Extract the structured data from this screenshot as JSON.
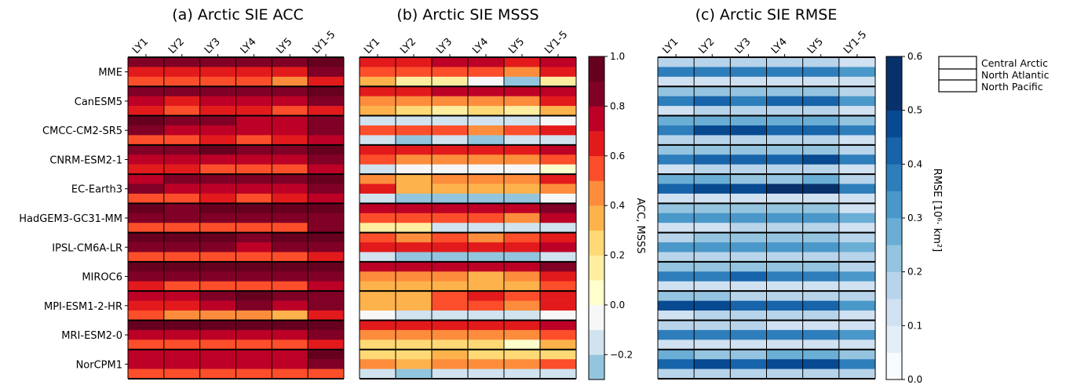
{
  "chart_data": [
    {
      "type": "heatmap",
      "title": "(a) Arctic SIE ACC",
      "x_labels": [
        "LY1",
        "LY2",
        "LY3",
        "LY4",
        "LY5",
        "LY1-5"
      ],
      "y_labels": [
        "MME",
        "CanESM5",
        "CMCC-CM2-SR5",
        "CNRM-ESM2-1",
        "EC-Earth3",
        "HadGEM3-GC31-MM",
        "IPSL-CM6A-LR",
        "MIROC6",
        "MPI-ESM1-2-HR",
        "MRI-ESM2-0",
        "NorCPM1"
      ],
      "sub_rows": [
        "Central Arctic",
        "North Atlantic",
        "North Pacific"
      ],
      "values": [
        [
          [
            0.86,
            0.85,
            0.86,
            0.83,
            0.82,
            0.91
          ],
          [
            0.66,
            0.66,
            0.67,
            0.66,
            0.66,
            0.86
          ],
          [
            0.57,
            0.57,
            0.55,
            0.57,
            0.48,
            0.66
          ]
        ],
        [
          [
            0.84,
            0.84,
            0.87,
            0.87,
            0.86,
            0.9
          ],
          [
            0.71,
            0.68,
            0.72,
            0.7,
            0.73,
            0.84
          ],
          [
            0.67,
            0.56,
            0.6,
            0.61,
            0.59,
            0.68
          ]
        ],
        [
          [
            0.93,
            0.83,
            0.84,
            0.75,
            0.73,
            0.87
          ],
          [
            0.8,
            0.78,
            0.78,
            0.75,
            0.72,
            0.83
          ],
          [
            0.52,
            0.55,
            0.62,
            0.56,
            0.61,
            0.77
          ]
        ],
        [
          [
            0.83,
            0.85,
            0.91,
            0.85,
            0.86,
            0.93
          ],
          [
            0.78,
            0.72,
            0.76,
            0.74,
            0.78,
            0.8
          ],
          [
            0.65,
            0.63,
            0.58,
            0.57,
            0.51,
            0.74
          ]
        ],
        [
          [
            0.76,
            0.83,
            0.8,
            0.81,
            0.8,
            0.95
          ],
          [
            0.81,
            0.72,
            0.73,
            0.73,
            0.72,
            0.82
          ],
          [
            0.5,
            0.5,
            0.6,
            0.5,
            0.6,
            0.76
          ]
        ],
        [
          [
            0.93,
            0.88,
            0.91,
            0.92,
            0.9,
            0.95
          ],
          [
            0.85,
            0.86,
            0.87,
            0.88,
            0.87,
            0.88
          ],
          [
            0.58,
            0.58,
            0.52,
            0.52,
            0.52,
            0.82
          ]
        ],
        [
          [
            0.91,
            0.95,
            0.95,
            0.89,
            0.91,
            0.93
          ],
          [
            0.8,
            0.84,
            0.82,
            0.79,
            0.8,
            0.87
          ],
          [
            0.52,
            0.51,
            0.52,
            0.5,
            0.51,
            0.62
          ]
        ],
        [
          [
            0.94,
            0.91,
            0.91,
            0.91,
            0.92,
            0.96
          ],
          [
            0.82,
            0.82,
            0.84,
            0.84,
            0.82,
            0.84
          ],
          [
            0.62,
            0.54,
            0.52,
            0.57,
            0.53,
            0.76
          ]
        ],
        [
          [
            0.72,
            0.73,
            0.82,
            0.9,
            0.89,
            0.88
          ],
          [
            0.65,
            0.63,
            0.78,
            0.81,
            0.76,
            0.86
          ],
          [
            0.54,
            0.45,
            0.44,
            0.42,
            0.38,
            0.65
          ]
        ],
        [
          [
            0.91,
            0.92,
            0.92,
            0.94,
            0.94,
            0.96
          ],
          [
            0.77,
            0.76,
            0.75,
            0.76,
            0.74,
            0.84
          ],
          [
            0.57,
            0.58,
            0.58,
            0.58,
            0.56,
            0.62
          ]
        ],
        [
          [
            0.76,
            0.76,
            0.73,
            0.75,
            0.76,
            0.92
          ],
          [
            0.73,
            0.72,
            0.75,
            0.74,
            0.73,
            0.87
          ],
          [
            0.52,
            0.52,
            0.52,
            0.52,
            0.51,
            0.58
          ]
        ]
      ],
      "colorbar": {
        "label": "ACC, MSSS",
        "ticks": [
          "1.0",
          "0.8",
          "0.6",
          "0.4",
          "0.2",
          "0.0",
          "−0.2"
        ],
        "range": [
          -0.3,
          1.0
        ]
      }
    },
    {
      "type": "heatmap",
      "title": "(b) Arctic SIE MSSS",
      "x_labels": [
        "LY1",
        "LY2",
        "LY3",
        "LY4",
        "LY5",
        "LY1-5"
      ],
      "y_labels": [
        "MME",
        "CanESM5",
        "CMCC-CM2-SR5",
        "CNRM-ESM2-1",
        "EC-Earth3",
        "HadGEM3-GC31-MM",
        "IPSL-CM6A-LR",
        "MIROC6",
        "MPI-ESM1-2-HR",
        "MRI-ESM2-0",
        "NorCPM1"
      ],
      "sub_rows": [
        "Central Arctic",
        "North Atlantic",
        "North Pacific"
      ],
      "values": [
        [
          [
            0.64,
            0.66,
            0.7,
            0.72,
            0.66,
            0.78
          ],
          [
            0.52,
            0.52,
            0.55,
            0.51,
            0.48,
            0.62
          ],
          [
            0.3,
            0.18,
            0.15,
            -0.05,
            -0.22,
            0.18
          ]
        ],
        [
          [
            0.62,
            0.64,
            0.73,
            0.73,
            0.71,
            0.78
          ],
          [
            0.47,
            0.44,
            0.48,
            0.49,
            0.46,
            0.63
          ],
          [
            0.34,
            0.21,
            0.17,
            0.22,
            0.19,
            0.3
          ]
        ],
        [
          [
            -0.18,
            -0.2,
            -0.17,
            -0.12,
            -0.2,
            -0.1
          ],
          [
            0.58,
            0.52,
            0.52,
            0.48,
            0.5,
            0.62
          ],
          [
            -0.2,
            -0.24,
            -0.18,
            -0.22,
            -0.18,
            -0.2
          ]
        ],
        [
          [
            0.62,
            0.62,
            0.65,
            0.62,
            0.64,
            0.72
          ],
          [
            0.51,
            0.46,
            0.48,
            0.42,
            0.48,
            0.55
          ],
          [
            -0.12,
            -0.02,
            -0.05,
            -0.1,
            -0.05,
            0.0
          ]
        ],
        [
          [
            0.42,
            0.35,
            0.42,
            0.45,
            0.41,
            0.62
          ],
          [
            0.6,
            0.32,
            0.36,
            0.31,
            0.34,
            0.46
          ],
          [
            -0.2,
            -0.22,
            -0.22,
            -0.21,
            -0.22,
            -0.03
          ]
        ],
        [
          [
            0.78,
            0.72,
            0.74,
            0.78,
            0.76,
            0.88
          ],
          [
            0.58,
            0.54,
            0.55,
            0.52,
            0.46,
            0.72
          ],
          [
            0.15,
            0.15,
            -0.2,
            -0.2,
            -0.2,
            -0.2
          ]
        ],
        [
          [
            0.57,
            0.46,
            0.56,
            0.47,
            0.5,
            0.62
          ],
          [
            0.6,
            0.62,
            0.68,
            0.62,
            0.62,
            0.72
          ],
          [
            -0.2,
            -0.23,
            -0.22,
            -0.21,
            -0.22,
            -0.15
          ]
        ],
        [
          [
            0.7,
            0.74,
            0.77,
            0.74,
            0.73,
            0.85
          ],
          [
            0.48,
            0.48,
            0.42,
            0.38,
            0.46,
            0.64
          ],
          [
            0.31,
            0.33,
            0.35,
            0.32,
            0.32,
            0.52
          ]
        ],
        [
          [
            0.34,
            0.3,
            0.52,
            0.62,
            0.54,
            0.66
          ],
          [
            0.32,
            0.3,
            0.56,
            0.52,
            0.44,
            0.64
          ],
          [
            -0.05,
            -0.15,
            -0.18,
            -0.2,
            -0.2,
            -0.05
          ]
        ],
        [
          [
            0.62,
            0.6,
            0.62,
            0.66,
            0.64,
            0.76
          ],
          [
            0.48,
            0.46,
            0.42,
            0.4,
            0.41,
            0.52
          ],
          [
            0.28,
            0.24,
            0.22,
            0.22,
            0.0,
            0.32
          ]
        ],
        [
          [
            0.22,
            0.26,
            0.32,
            0.28,
            0.26,
            0.2
          ],
          [
            0.44,
            0.38,
            0.42,
            0.41,
            0.4,
            0.56
          ],
          [
            -0.2,
            -0.22,
            -0.2,
            -0.2,
            -0.2,
            -0.16
          ]
        ]
      ]
    },
    {
      "type": "heatmap",
      "title": "(c) Arctic SIE RMSE",
      "x_labels": [
        "LY1",
        "LY2",
        "LY3",
        "LY4",
        "LY5",
        "LY1-5"
      ],
      "y_labels": [
        "MME",
        "CanESM5",
        "CMCC-CM2-SR5",
        "CNRM-ESM2-1",
        "EC-Earth3",
        "HadGEM3-GC31-MM",
        "IPSL-CM6A-LR",
        "MIROC6",
        "MPI-ESM1-2-HR",
        "MRI-ESM2-0",
        "NorCPM1"
      ],
      "sub_rows": [
        "Central Arctic",
        "North Atlantic",
        "North Pacific"
      ],
      "values": [
        [
          [
            0.15,
            0.16,
            0.15,
            0.16,
            0.17,
            0.12
          ],
          [
            0.37,
            0.38,
            0.37,
            0.38,
            0.39,
            0.3
          ],
          [
            0.12,
            0.13,
            0.13,
            0.14,
            0.14,
            0.11
          ]
        ],
        [
          [
            0.22,
            0.23,
            0.2,
            0.21,
            0.21,
            0.17
          ],
          [
            0.39,
            0.4,
            0.39,
            0.41,
            0.4,
            0.33
          ],
          [
            0.13,
            0.15,
            0.15,
            0.15,
            0.15,
            0.12
          ]
        ],
        [
          [
            0.25,
            0.27,
            0.27,
            0.27,
            0.26,
            0.22
          ],
          [
            0.38,
            0.47,
            0.45,
            0.42,
            0.44,
            0.35
          ],
          [
            0.16,
            0.19,
            0.19,
            0.19,
            0.18,
            0.14
          ]
        ],
        [
          [
            0.2,
            0.21,
            0.22,
            0.22,
            0.22,
            0.16
          ],
          [
            0.38,
            0.42,
            0.44,
            0.43,
            0.48,
            0.36
          ],
          [
            0.14,
            0.15,
            0.15,
            0.15,
            0.15,
            0.12
          ]
        ],
        [
          [
            0.25,
            0.27,
            0.24,
            0.24,
            0.26,
            0.18
          ],
          [
            0.4,
            0.47,
            0.47,
            0.52,
            0.5,
            0.39
          ],
          [
            0.13,
            0.14,
            0.14,
            0.14,
            0.14,
            0.12
          ]
        ],
        [
          [
            0.2,
            0.21,
            0.22,
            0.21,
            0.21,
            0.14
          ],
          [
            0.3,
            0.31,
            0.32,
            0.33,
            0.34,
            0.25
          ],
          [
            0.13,
            0.13,
            0.15,
            0.15,
            0.15,
            0.12
          ]
        ],
        [
          [
            0.18,
            0.2,
            0.2,
            0.2,
            0.2,
            0.16
          ],
          [
            0.33,
            0.34,
            0.34,
            0.34,
            0.34,
            0.28
          ],
          [
            0.16,
            0.16,
            0.16,
            0.16,
            0.16,
            0.15
          ]
        ],
        [
          [
            0.2,
            0.2,
            0.2,
            0.2,
            0.2,
            0.15
          ],
          [
            0.37,
            0.38,
            0.4,
            0.39,
            0.38,
            0.3
          ],
          [
            0.12,
            0.13,
            0.13,
            0.13,
            0.13,
            0.11
          ]
        ],
        [
          [
            0.22,
            0.24,
            0.19,
            0.16,
            0.17,
            0.16
          ],
          [
            0.45,
            0.47,
            0.44,
            0.42,
            0.44,
            0.34
          ],
          [
            0.14,
            0.16,
            0.16,
            0.16,
            0.16,
            0.12
          ]
        ],
        [
          [
            0.15,
            0.15,
            0.15,
            0.14,
            0.14,
            0.12
          ],
          [
            0.36,
            0.37,
            0.37,
            0.38,
            0.38,
            0.32
          ],
          [
            0.12,
            0.13,
            0.13,
            0.14,
            0.14,
            0.11
          ]
        ],
        [
          [
            0.25,
            0.24,
            0.24,
            0.25,
            0.25,
            0.2
          ],
          [
            0.44,
            0.45,
            0.44,
            0.45,
            0.45,
            0.35
          ],
          [
            0.17,
            0.17,
            0.18,
            0.18,
            0.18,
            0.16
          ]
        ]
      ],
      "colorbar": {
        "label": "RMSE [10⁶· km²]",
        "ticks": [
          "0.6",
          "0.5",
          "0.4",
          "0.3",
          "0.2",
          "0.1",
          "0.0"
        ],
        "range": [
          0.0,
          0.6
        ]
      }
    }
  ],
  "legend": {
    "entries": [
      "Central Arctic",
      "North Atlantic",
      "North Pacific"
    ]
  },
  "colors": {
    "acc_bins": [
      "#93c5de",
      "#d0e3ef",
      "#f7f7f7",
      "#ffffcc",
      "#ffeda0",
      "#fed976",
      "#feb24c",
      "#fd8d3c",
      "#fc4e2a",
      "#e31a1c",
      "#bd0026",
      "#800026",
      "#67001f"
    ],
    "rmse_bins": [
      "#f7fbff",
      "#e3eef9",
      "#d0e1f2",
      "#b7d4ea",
      "#94c4df",
      "#6aaed6",
      "#4a98c9",
      "#2e7ebc",
      "#1764ab",
      "#084a91",
      "#08306b"
    ]
  }
}
